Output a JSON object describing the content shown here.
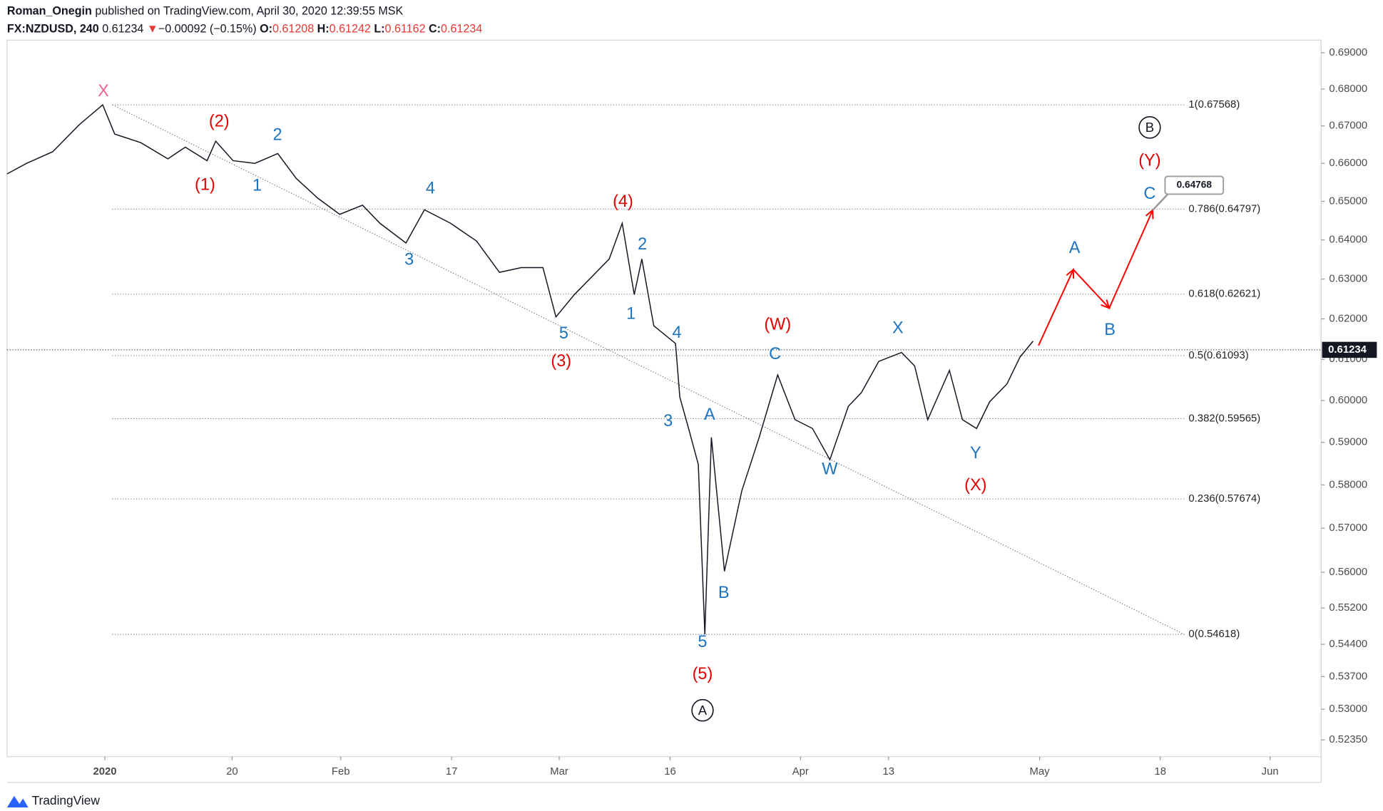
{
  "chart_data": {
    "type": "line",
    "header": {
      "author": "Roman_Onegin",
      "published": "published on TradingView.com, April 30, 2020 12:39:55 MSK",
      "symbol": "FX:NZDUSD, 240",
      "last": "0.61234",
      "change_arrow": "▼",
      "change": "−0.00092 (−0.15%)",
      "open_label": "O:",
      "open": "0.61208",
      "high_label": "H:",
      "high": "0.61242",
      "low_label": "L:",
      "low": "0.61162",
      "close_label": "C:",
      "close": "0.61234"
    },
    "log_scale": true,
    "ylim": [
      0.52,
      0.6935
    ],
    "yticks": [
      {
        "value": 0.69,
        "label": "0.69000"
      },
      {
        "value": 0.68,
        "label": "0.68000"
      },
      {
        "value": 0.67,
        "label": "0.67000"
      },
      {
        "value": 0.66,
        "label": "0.66000"
      },
      {
        "value": 0.65,
        "label": "0.65000"
      },
      {
        "value": 0.64,
        "label": "0.64000"
      },
      {
        "value": 0.63,
        "label": "0.63000"
      },
      {
        "value": 0.62,
        "label": "0.62000"
      },
      {
        "value": 0.61,
        "label": "0.61000"
      },
      {
        "value": 0.6,
        "label": "0.60000"
      },
      {
        "value": 0.59,
        "label": "0.59000"
      },
      {
        "value": 0.58,
        "label": "0.58000"
      },
      {
        "value": 0.57,
        "label": "0.57000"
      },
      {
        "value": 0.56,
        "label": "0.56000"
      },
      {
        "value": 0.552,
        "label": "0.55200"
      },
      {
        "value": 0.544,
        "label": "0.54400"
      },
      {
        "value": 0.537,
        "label": "0.53700"
      },
      {
        "value": 0.53,
        "label": "0.53000"
      },
      {
        "value": 0.5235,
        "label": "0.52350"
      }
    ],
    "xlim": [
      -9.0,
      111.9
    ],
    "xticks": [
      {
        "value": 0,
        "label": "2020"
      },
      {
        "value": 11.7,
        "label": "20"
      },
      {
        "value": 21.7,
        "label": "Feb"
      },
      {
        "value": 31.9,
        "label": "17"
      },
      {
        "value": 41.8,
        "label": "Mar"
      },
      {
        "value": 52.0,
        "label": "16"
      },
      {
        "value": 64.0,
        "label": "Apr"
      },
      {
        "value": 72.1,
        "label": "13"
      },
      {
        "value": 86.0,
        "label": "May"
      },
      {
        "value": 97.1,
        "label": "18"
      },
      {
        "value": 107.2,
        "label": "Jun"
      }
    ],
    "series": [
      {
        "color": "#131722",
        "x": [
          -9.0,
          -7.2,
          -4.8,
          -2.4,
          -0.2,
          0.9,
          3.3,
          5.8,
          7.4,
          9.4,
          10.2,
          11.8,
          13.8,
          15.9,
          17.6,
          19.6,
          21.6,
          23.7,
          25.3,
          27.7,
          29.4,
          31.8,
          34.2,
          36.3,
          38.3,
          40.3,
          41.5,
          43.2,
          46.4,
          47.6,
          48.7,
          49.4,
          50.5,
          52.5,
          52.9,
          53.7,
          54.6,
          55.2,
          55.8,
          57.0,
          58.6,
          60.2,
          61.9,
          63.5,
          65.1,
          66.7,
          68.4,
          69.6,
          71.2,
          73.3,
          74.5,
          75.7,
          77.7,
          78.9,
          80.2,
          81.4,
          83.0,
          84.2,
          85.4
        ],
        "values": [
          0.6572,
          0.66,
          0.6631,
          0.6702,
          0.6757,
          0.6678,
          0.6655,
          0.6612,
          0.6643,
          0.6607,
          0.6659,
          0.6607,
          0.66,
          0.6626,
          0.656,
          0.6508,
          0.6466,
          0.649,
          0.6443,
          0.6392,
          0.6478,
          0.6443,
          0.6397,
          0.6317,
          0.6329,
          0.6329,
          0.6205,
          0.6261,
          0.6351,
          0.6443,
          0.6261,
          0.6351,
          0.6183,
          0.6139,
          0.6008,
          0.5933,
          0.5848,
          0.5462,
          0.5912,
          0.5602,
          0.5786,
          0.5912,
          0.6062,
          0.5954,
          0.5933,
          0.5859,
          0.5986,
          0.6019,
          0.6095,
          0.6117,
          0.6084,
          0.5954,
          0.6073,
          0.5954,
          0.5933,
          0.5997,
          0.604,
          0.6106,
          0.6145
        ]
      }
    ],
    "last_price": 0.61234,
    "fib_levels": [
      {
        "value": 0.67568,
        "label": "1(0.67568)"
      },
      {
        "value": 0.64797,
        "label": "0.786(0.64797)"
      },
      {
        "value": 0.62621,
        "label": "0.618(0.62621)"
      },
      {
        "value": 0.61093,
        "label": "0.5(0.61093)"
      },
      {
        "value": 0.59565,
        "label": "0.382(0.59565)"
      },
      {
        "value": 0.57674,
        "label": "0.236(0.57674)"
      },
      {
        "value": 0.54618,
        "label": "0(0.54618)"
      }
    ],
    "trendline": {
      "x": [
        0.7,
        99.3
      ],
      "values": [
        0.6757,
        0.5462
      ]
    },
    "projection": {
      "color": "#ff0000",
      "x": [
        85.9,
        89.1,
        92.4,
        96.4
      ],
      "values": [
        0.6134,
        0.6324,
        0.6227,
        0.6477
      ],
      "target": 0.64768
    },
    "wave_labels": [
      {
        "text": "X",
        "color": "#f06292"
      },
      {
        "text": "(2)",
        "color": "#e00000"
      },
      {
        "text": "(1)",
        "color": "#e00000"
      },
      {
        "text": "2",
        "color": "#1e73be"
      },
      {
        "text": "1",
        "color": "#1e73be"
      },
      {
        "text": "4",
        "color": "#1e73be"
      },
      {
        "text": "3",
        "color": "#1e73be"
      },
      {
        "text": "5",
        "color": "#1e73be"
      },
      {
        "text": "(3)",
        "color": "#e00000"
      },
      {
        "text": "(4)",
        "color": "#e00000"
      },
      {
        "text": "2",
        "color": "#1e73be"
      },
      {
        "text": "1",
        "color": "#1e73be"
      },
      {
        "text": "4",
        "color": "#1e73be"
      },
      {
        "text": "3",
        "color": "#1e73be"
      },
      {
        "text": "A",
        "color": "#1e73be"
      },
      {
        "text": "B",
        "color": "#1e73be"
      },
      {
        "text": "5",
        "color": "#1e73be"
      },
      {
        "text": "(5)",
        "color": "#e00000"
      },
      {
        "text": "(W)",
        "color": "#e00000"
      },
      {
        "text": "C",
        "color": "#1e73be"
      },
      {
        "text": "W",
        "color": "#1e73be"
      },
      {
        "text": "X",
        "color": "#1e73be"
      },
      {
        "text": "Y",
        "color": "#1e73be"
      },
      {
        "text": "(X)",
        "color": "#e00000"
      },
      {
        "text": "A",
        "color": "#1e73be"
      },
      {
        "text": "B",
        "color": "#1e73be"
      },
      {
        "text": "C",
        "color": "#1e73be"
      },
      {
        "text": "(Y)",
        "color": "#e00000"
      }
    ],
    "circled_labels": [
      {
        "text": "A"
      },
      {
        "text": "B"
      }
    ],
    "footer": "TradingView"
  }
}
